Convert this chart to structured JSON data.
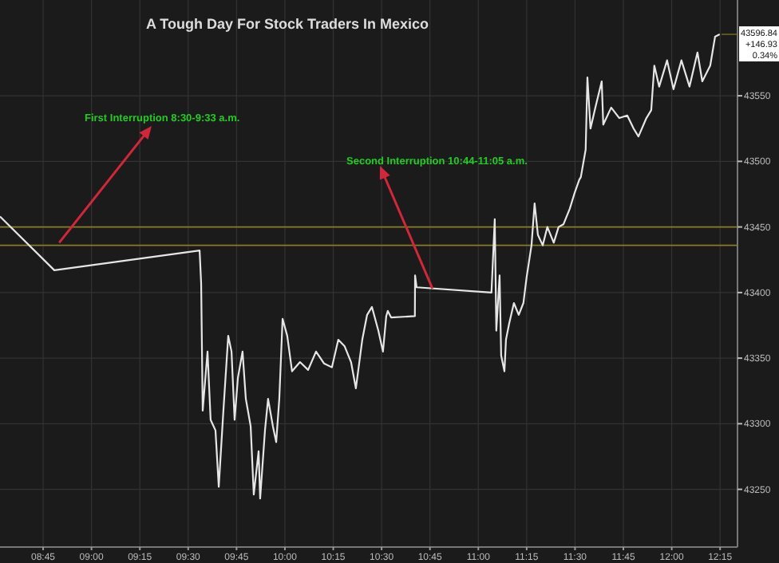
{
  "chart_data": {
    "type": "line",
    "title": "A Tough Day For Stock Traders In Mexico",
    "x": [
      8.527,
      8.808,
      9.559,
      9.567,
      9.575,
      9.6,
      9.616,
      9.641,
      9.658,
      9.682,
      9.707,
      9.724,
      9.74,
      9.757,
      9.781,
      9.798,
      9.823,
      9.839,
      9.864,
      9.872,
      9.897,
      9.913,
      9.938,
      9.955,
      9.971,
      9.988,
      10.012,
      10.037,
      10.078,
      10.12,
      10.161,
      10.202,
      10.243,
      10.276,
      10.309,
      10.342,
      10.367,
      10.4,
      10.425,
      10.45,
      10.483,
      10.507,
      10.524,
      10.532,
      10.549,
      10.672,
      10.673,
      10.681,
      11.068,
      11.085,
      11.093,
      11.11,
      11.118,
      11.135,
      11.143,
      11.159,
      11.184,
      11.209,
      11.233,
      11.25,
      11.275,
      11.291,
      11.308,
      11.333,
      11.357,
      11.39,
      11.415,
      11.44,
      11.473,
      11.498,
      11.522,
      11.53,
      11.555,
      11.564,
      11.58,
      11.605,
      11.638,
      11.646,
      11.687,
      11.729,
      11.77,
      11.803,
      11.828,
      11.869,
      11.894,
      11.91,
      11.935,
      11.976,
      12.009,
      12.05,
      12.092,
      12.133,
      12.158,
      12.199,
      12.224,
      12.248
    ],
    "series": [
      {
        "color": "#e6e6e6",
        "values": [
          43458,
          43417,
          43432,
          43407,
          43310,
          43355,
          43303,
          43295,
          43252,
          43310,
          43367,
          43355,
          43303,
          43335,
          43355,
          43319,
          43298,
          43246,
          43279,
          43243,
          43295,
          43319,
          43298,
          43286,
          43319,
          43380,
          43367,
          43340,
          43347,
          43341,
          43355,
          43346,
          43343,
          43364,
          43359,
          43347,
          43327,
          43364,
          43383,
          43389,
          43371,
          43355,
          43382,
          43386,
          43381,
          43382,
          43413,
          43404,
          43400,
          43456,
          43371,
          43413,
          43352,
          43340,
          43364,
          43376,
          43392,
          43383,
          43392,
          43412,
          43436,
          43468,
          43444,
          43436,
          43450,
          43438,
          43450,
          43452,
          43464,
          43476,
          43486,
          43488,
          43509,
          43564,
          43525,
          43541,
          43561,
          43528,
          43541,
          43533,
          43535,
          43525,
          43519,
          43533,
          43539,
          43573,
          43557,
          43577,
          43555,
          43577,
          43557,
          43583,
          43561,
          43573,
          43595,
          43596.84
        ]
      }
    ],
    "xlim": [
      8.527,
      12.34
    ],
    "ylim": [
      43206,
      43623
    ],
    "xticks": [
      {
        "value": 8.75,
        "label": "08:45"
      },
      {
        "value": 9,
        "label": "09:00"
      },
      {
        "value": 9.25,
        "label": "09:15"
      },
      {
        "value": 9.5,
        "label": "09:30"
      },
      {
        "value": 9.75,
        "label": "09:45"
      },
      {
        "value": 10,
        "label": "10:00"
      },
      {
        "value": 10.25,
        "label": "10:15"
      },
      {
        "value": 10.5,
        "label": "10:30"
      },
      {
        "value": 10.75,
        "label": "10:45"
      },
      {
        "value": 11,
        "label": "11:00"
      },
      {
        "value": 11.25,
        "label": "11:15"
      },
      {
        "value": 11.5,
        "label": "11:30"
      },
      {
        "value": 11.75,
        "label": "11:45"
      },
      {
        "value": 12,
        "label": "12:00"
      },
      {
        "value": 12.25,
        "label": "12:15"
      }
    ],
    "yticks": [
      43250,
      43300,
      43350,
      43400,
      43450,
      43500,
      43550
    ],
    "grid": true,
    "ref_lines": [
      {
        "axis": "y",
        "value": 43450,
        "color": "#8a7a2a"
      },
      {
        "axis": "y",
        "value": 43436,
        "color": "#8a7a2a"
      }
    ],
    "annotations": [
      {
        "text": "First Interruption 8:30-9:33 a.m.",
        "x": 8.833,
        "y": 43438
      },
      {
        "text": "Second Interruption 10:44-11:05 a.m.",
        "x": 10.763,
        "y": 43403
      },
      "43596.84",
      "+146.93",
      "0.34%"
    ]
  }
}
